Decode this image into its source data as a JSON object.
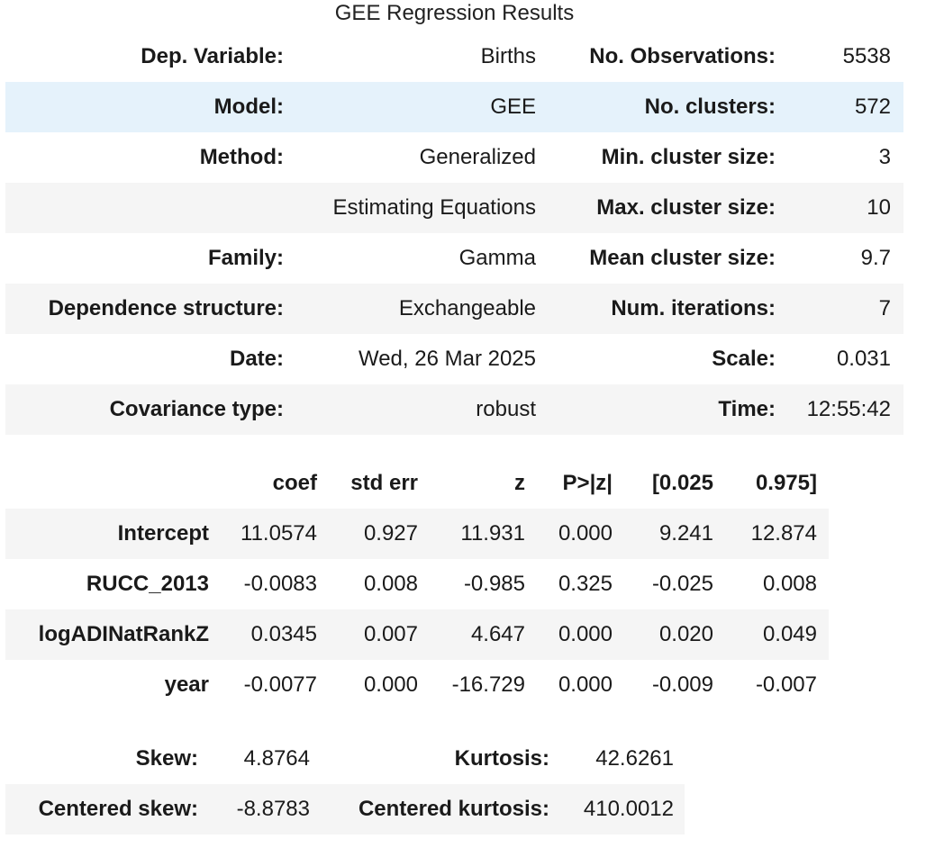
{
  "caption": "GEE Regression Results",
  "summary": {
    "rows": [
      {
        "label1": "Dep. Variable:",
        "value1": "Births",
        "label2": "No. Observations:",
        "value2": "5538"
      },
      {
        "label1": "Model:",
        "value1": "GEE",
        "label2": "No. clusters:",
        "value2": "572"
      },
      {
        "label1": "Method:",
        "value1": "Generalized",
        "label2": "Min. cluster size:",
        "value2": "3"
      },
      {
        "label1": "",
        "value1": "Estimating Equations",
        "label2": "Max. cluster size:",
        "value2": "10"
      },
      {
        "label1": "Family:",
        "value1": "Gamma",
        "label2": "Mean cluster size:",
        "value2": "9.7"
      },
      {
        "label1": "Dependence structure:",
        "value1": "Exchangeable",
        "label2": "Num. iterations:",
        "value2": "7"
      },
      {
        "label1": "Date:",
        "value1": "Wed, 26 Mar 2025",
        "label2": "Scale:",
        "value2": "0.031"
      },
      {
        "label1": "Covariance type:",
        "value1": "robust",
        "label2": "Time:",
        "value2": "12:55:42"
      }
    ]
  },
  "coefficients": {
    "headers": [
      "coef",
      "std err",
      "z",
      "P>|z|",
      "[0.025",
      "0.975]"
    ],
    "rows": [
      {
        "name": "Intercept",
        "values": [
          "11.0574",
          "0.927",
          "11.931",
          "0.000",
          "9.241",
          "12.874"
        ]
      },
      {
        "name": "RUCC_2013",
        "values": [
          "-0.0083",
          "0.008",
          "-0.985",
          "0.325",
          "-0.025",
          "0.008"
        ]
      },
      {
        "name": "logADINatRankZ",
        "values": [
          "0.0345",
          "0.007",
          "4.647",
          "0.000",
          "0.020",
          "0.049"
        ]
      },
      {
        "name": "year",
        "values": [
          "-0.0077",
          "0.000",
          "-16.729",
          "0.000",
          "-0.009",
          "-0.007"
        ]
      }
    ]
  },
  "diagnostics": {
    "rows": [
      {
        "label1": "Skew:",
        "value1": "4.8764",
        "label2": "Kurtosis:",
        "value2": "42.6261"
      },
      {
        "label1": "Centered skew:",
        "value1": "-8.8783",
        "label2": "Centered kurtosis:",
        "value2": "410.0012"
      }
    ]
  },
  "colors": {
    "stripe": "#f5f5f5",
    "highlight": "#e5f2fb",
    "text": "#1a1a1a"
  }
}
